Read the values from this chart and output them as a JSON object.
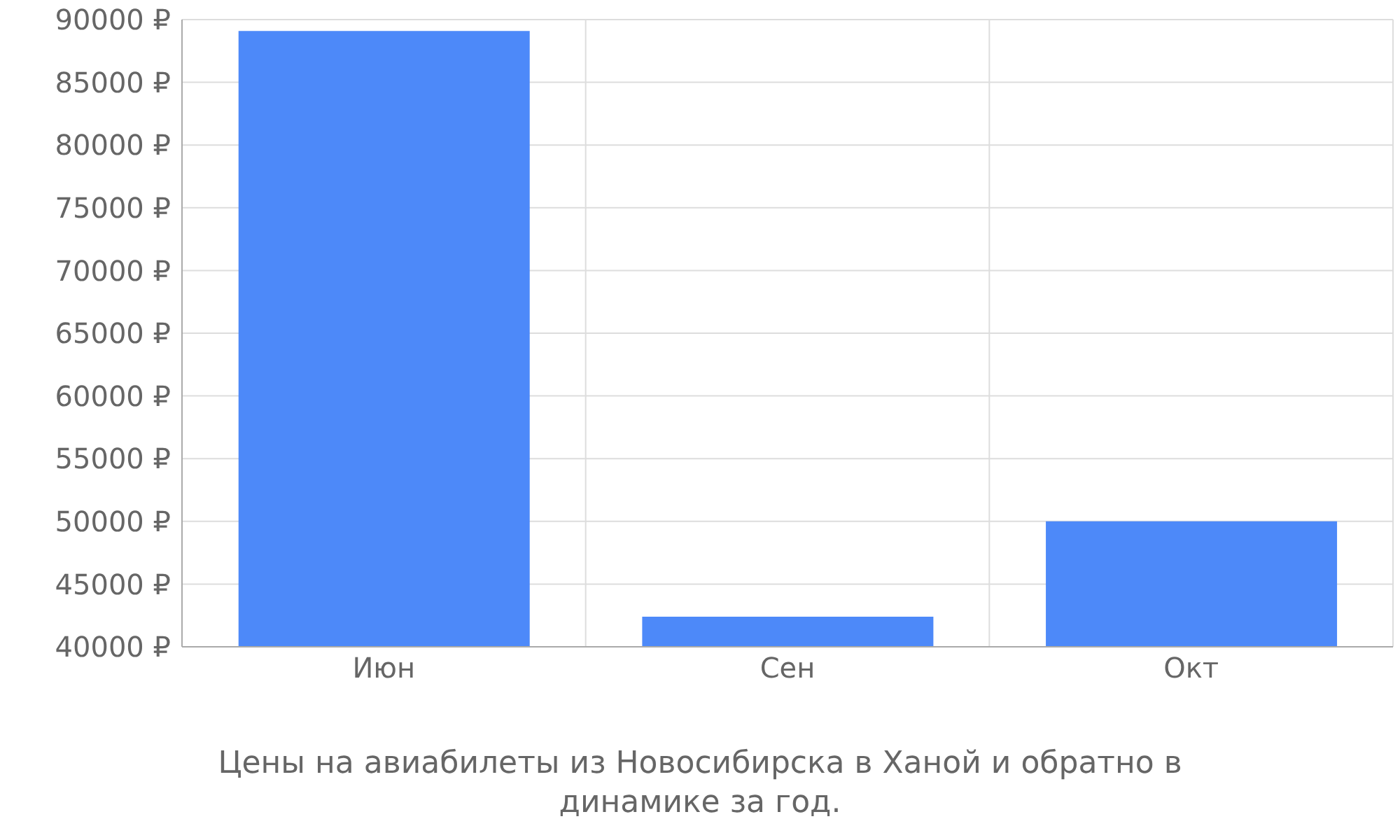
{
  "chart_data": {
    "type": "bar",
    "title": "Цены на авиабилеты из Новосибирска в Ханой и обратно в динамике за год.",
    "categories": [
      "Июн",
      "Сен",
      "Окт"
    ],
    "values": [
      89100,
      42400,
      50000
    ],
    "color": "#4d89f9",
    "ylim": [
      40000,
      90000
    ],
    "yticks": [
      {
        "value": 40000,
        "label": "40000 ₽"
      },
      {
        "value": 45000,
        "label": "45000 ₽"
      },
      {
        "value": 50000,
        "label": "50000 ₽"
      },
      {
        "value": 55000,
        "label": "55000 ₽"
      },
      {
        "value": 60000,
        "label": "60000 ₽"
      },
      {
        "value": 65000,
        "label": "65000 ₽"
      },
      {
        "value": 70000,
        "label": "70000 ₽"
      },
      {
        "value": 75000,
        "label": "75000 ₽"
      },
      {
        "value": 80000,
        "label": "80000 ₽"
      },
      {
        "value": 85000,
        "label": "85000 ₽"
      },
      {
        "value": 90000,
        "label": "90000 ₽"
      }
    ],
    "grid": true
  }
}
